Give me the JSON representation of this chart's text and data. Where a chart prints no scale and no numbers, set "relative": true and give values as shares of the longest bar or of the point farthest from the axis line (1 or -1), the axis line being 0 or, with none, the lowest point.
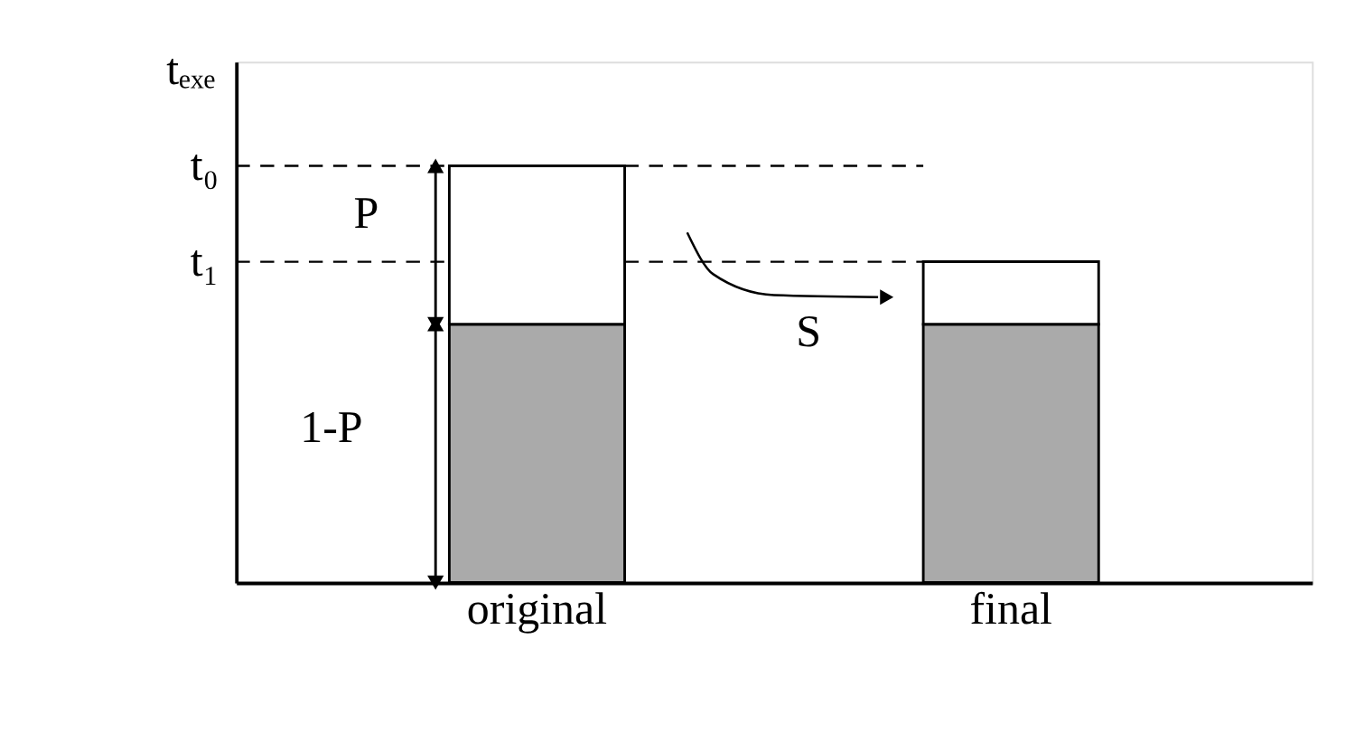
{
  "chart_data": {
    "type": "bar",
    "relative": true,
    "stacked": true,
    "ylabel": "tₑₓₑ",
    "categories": [
      "original",
      "final"
    ],
    "series": [
      {
        "color": "#aaaaaa",
        "values": [
          0.62,
          0.62
        ]
      },
      {
        "color": "#ffffff",
        "values": [
          0.38,
          0.15
        ]
      }
    ],
    "ref_lines": [
      {
        "axis": "y",
        "value": 1,
        "label": "t₀",
        "line_style": "dashed",
        "color": "#000000"
      },
      {
        "axis": "y",
        "value": 0.77,
        "label": "t₁",
        "line_style": "dashed",
        "color": "#000000"
      }
    ],
    "annotations": [
      "P",
      "1-P",
      "S"
    ],
    "grid": false
  }
}
